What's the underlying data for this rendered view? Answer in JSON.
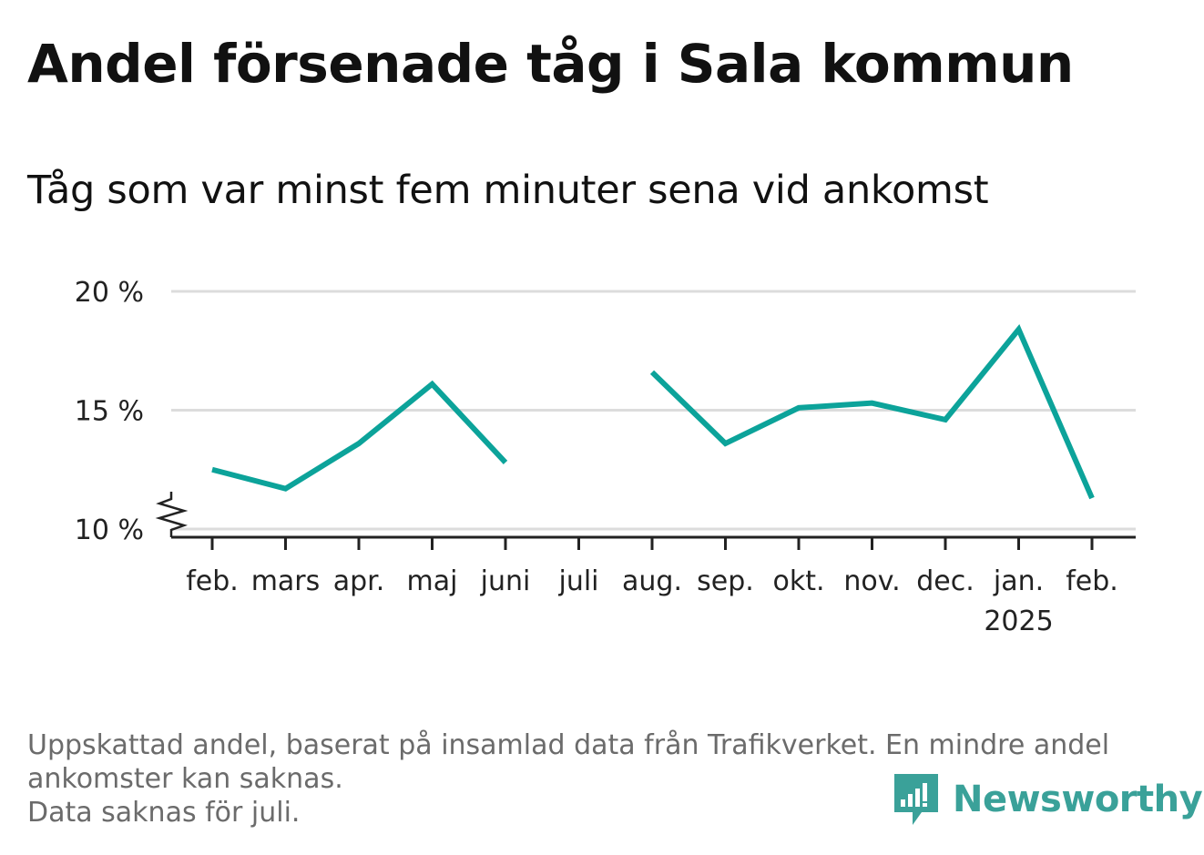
{
  "title": "Andel försenade tåg i Sala kommun",
  "subtitle": "Tåg som var minst fem minuter sena vid ankomst",
  "chart_data": {
    "type": "line",
    "y_tick_labels": [
      "20 %",
      "15 %",
      "10 %"
    ],
    "y_ticks": [
      20,
      15,
      10
    ],
    "ylim": [
      10,
      20
    ],
    "y_axis_break": true,
    "grid": true,
    "categories": [
      "feb.",
      "mars",
      "apr.",
      "maj",
      "juni",
      "juli",
      "aug.",
      "sep.",
      "okt.",
      "nov.",
      "dec.",
      "jan.",
      "feb."
    ],
    "year_label": {
      "category_index": 11,
      "text": "2025"
    },
    "series": [
      {
        "values": [
          12.5,
          11.7,
          13.6,
          16.1,
          12.8,
          null,
          16.6,
          13.6,
          15.1,
          15.3,
          14.6,
          18.4,
          11.3
        ],
        "color": "#0ca39a"
      }
    ]
  },
  "footnote": {
    "line1": "Uppskattad andel, baserat på insamlad data från Trafikverket. En mindre andel",
    "line2": "ankomster kan saknas.",
    "line3": "Data saknas för juli."
  },
  "brand": {
    "name": "Newsworthy",
    "icon": "newsworthy-logo-icon",
    "color": "#3aa199"
  }
}
